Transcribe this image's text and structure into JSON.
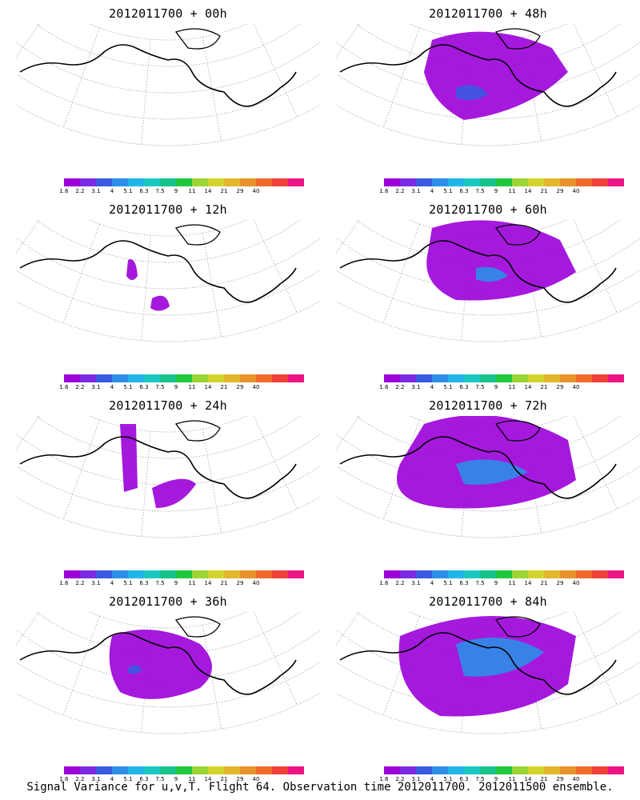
{
  "panels": [
    {
      "title": "2012011700 + 00h"
    },
    {
      "title": "2012011700 + 48h"
    },
    {
      "title": "2012011700 + 12h"
    },
    {
      "title": "2012011700 + 60h"
    },
    {
      "title": "2012011700 + 24h"
    },
    {
      "title": "2012011700 + 72h"
    },
    {
      "title": "2012011700 + 36h"
    },
    {
      "title": "2012011700 + 84h"
    }
  ],
  "colorbar": {
    "labels": [
      "1.6",
      "2.2",
      "3.1",
      "4",
      "5.1",
      "6.3",
      "7.5",
      "9",
      "11",
      "14",
      "21",
      "29",
      "40"
    ],
    "colors": [
      "#9b00d9",
      "#7a2be3",
      "#3a5ae0",
      "#2c8ee8",
      "#21b6e8",
      "#19c9c0",
      "#17c28a",
      "#1fc83c",
      "#9bd534",
      "#d4d42f",
      "#e5b62c",
      "#e8922a",
      "#f06a2a",
      "#f2413a",
      "#ee1486"
    ]
  },
  "footer": "Signal Variance for u,v,T. Flight 64. Observation time 2012011700. 2012011500 ensemble."
}
